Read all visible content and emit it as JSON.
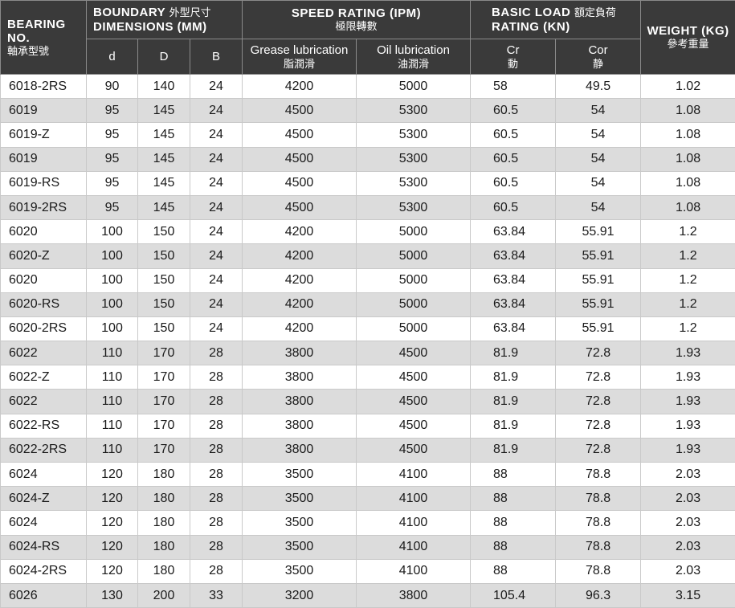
{
  "header": {
    "bearing_no_en_1": "BEARING",
    "bearing_no_en_2": "NO.",
    "bearing_no_cn": "軸承型號",
    "boundary_en": "BOUNDARY",
    "boundary_cn": "外型尺寸",
    "dimensions_en": "DIMENSIONS (MM)",
    "speed_en": "SPEED RATING (IPM)",
    "speed_cn": "極限轉數",
    "load_en": "BASIC LOAD",
    "load_cn": "額定負荷",
    "load_en_2": "RATING (KN)",
    "weight_en": "WEIGHT (KG)",
    "weight_cn": "參考重量",
    "d": "d",
    "D": "D",
    "B": "B",
    "grease_en": "Grease lubrication",
    "grease_cn": "脂潤滑",
    "oil_en": "Oil lubrication",
    "oil_cn": "油潤滑",
    "cr_en": "Cr",
    "cr_cn": "動",
    "cor_en": "Cor",
    "cor_cn": "静"
  },
  "rows": [
    [
      "6018-2RS",
      "90",
      "140",
      "24",
      "4200",
      "5000",
      "58",
      "49.5",
      "1.02"
    ],
    [
      "6019",
      "95",
      "145",
      "24",
      "4500",
      "5300",
      "60.5",
      "54",
      "1.08"
    ],
    [
      "6019-Z",
      "95",
      "145",
      "24",
      "4500",
      "5300",
      "60.5",
      "54",
      "1.08"
    ],
    [
      "6019",
      "95",
      "145",
      "24",
      "4500",
      "5300",
      "60.5",
      "54",
      "1.08"
    ],
    [
      "6019-RS",
      "95",
      "145",
      "24",
      "4500",
      "5300",
      "60.5",
      "54",
      "1.08"
    ],
    [
      "6019-2RS",
      "95",
      "145",
      "24",
      "4500",
      "5300",
      "60.5",
      "54",
      "1.08"
    ],
    [
      "6020",
      "100",
      "150",
      "24",
      "4200",
      "5000",
      "63.84",
      "55.91",
      "1.2"
    ],
    [
      "6020-Z",
      "100",
      "150",
      "24",
      "4200",
      "5000",
      "63.84",
      "55.91",
      "1.2"
    ],
    [
      "6020",
      "100",
      "150",
      "24",
      "4200",
      "5000",
      "63.84",
      "55.91",
      "1.2"
    ],
    [
      "6020-RS",
      "100",
      "150",
      "24",
      "4200",
      "5000",
      "63.84",
      "55.91",
      "1.2"
    ],
    [
      "6020-2RS",
      "100",
      "150",
      "24",
      "4200",
      "5000",
      "63.84",
      "55.91",
      "1.2"
    ],
    [
      "6022",
      "110",
      "170",
      "28",
      "3800",
      "4500",
      "81.9",
      "72.8",
      "1.93"
    ],
    [
      "6022-Z",
      "110",
      "170",
      "28",
      "3800",
      "4500",
      "81.9",
      "72.8",
      "1.93"
    ],
    [
      "6022",
      "110",
      "170",
      "28",
      "3800",
      "4500",
      "81.9",
      "72.8",
      "1.93"
    ],
    [
      "6022-RS",
      "110",
      "170",
      "28",
      "3800",
      "4500",
      "81.9",
      "72.8",
      "1.93"
    ],
    [
      "6022-2RS",
      "110",
      "170",
      "28",
      "3800",
      "4500",
      "81.9",
      "72.8",
      "1.93"
    ],
    [
      "6024",
      "120",
      "180",
      "28",
      "3500",
      "4100",
      "88",
      "78.8",
      "2.03"
    ],
    [
      "6024-Z",
      "120",
      "180",
      "28",
      "3500",
      "4100",
      "88",
      "78.8",
      "2.03"
    ],
    [
      "6024",
      "120",
      "180",
      "28",
      "3500",
      "4100",
      "88",
      "78.8",
      "2.03"
    ],
    [
      "6024-RS",
      "120",
      "180",
      "28",
      "3500",
      "4100",
      "88",
      "78.8",
      "2.03"
    ],
    [
      "6024-2RS",
      "120",
      "180",
      "28",
      "3500",
      "4100",
      "88",
      "78.8",
      "2.03"
    ],
    [
      "6026",
      "130",
      "200",
      "33",
      "3200",
      "3800",
      "105.4",
      "96.3",
      "3.15"
    ]
  ],
  "colors": {
    "header_bg": "#3a3a3a",
    "row_alt_bg": "#dcdcdc",
    "row_bg": "#ffffff"
  }
}
